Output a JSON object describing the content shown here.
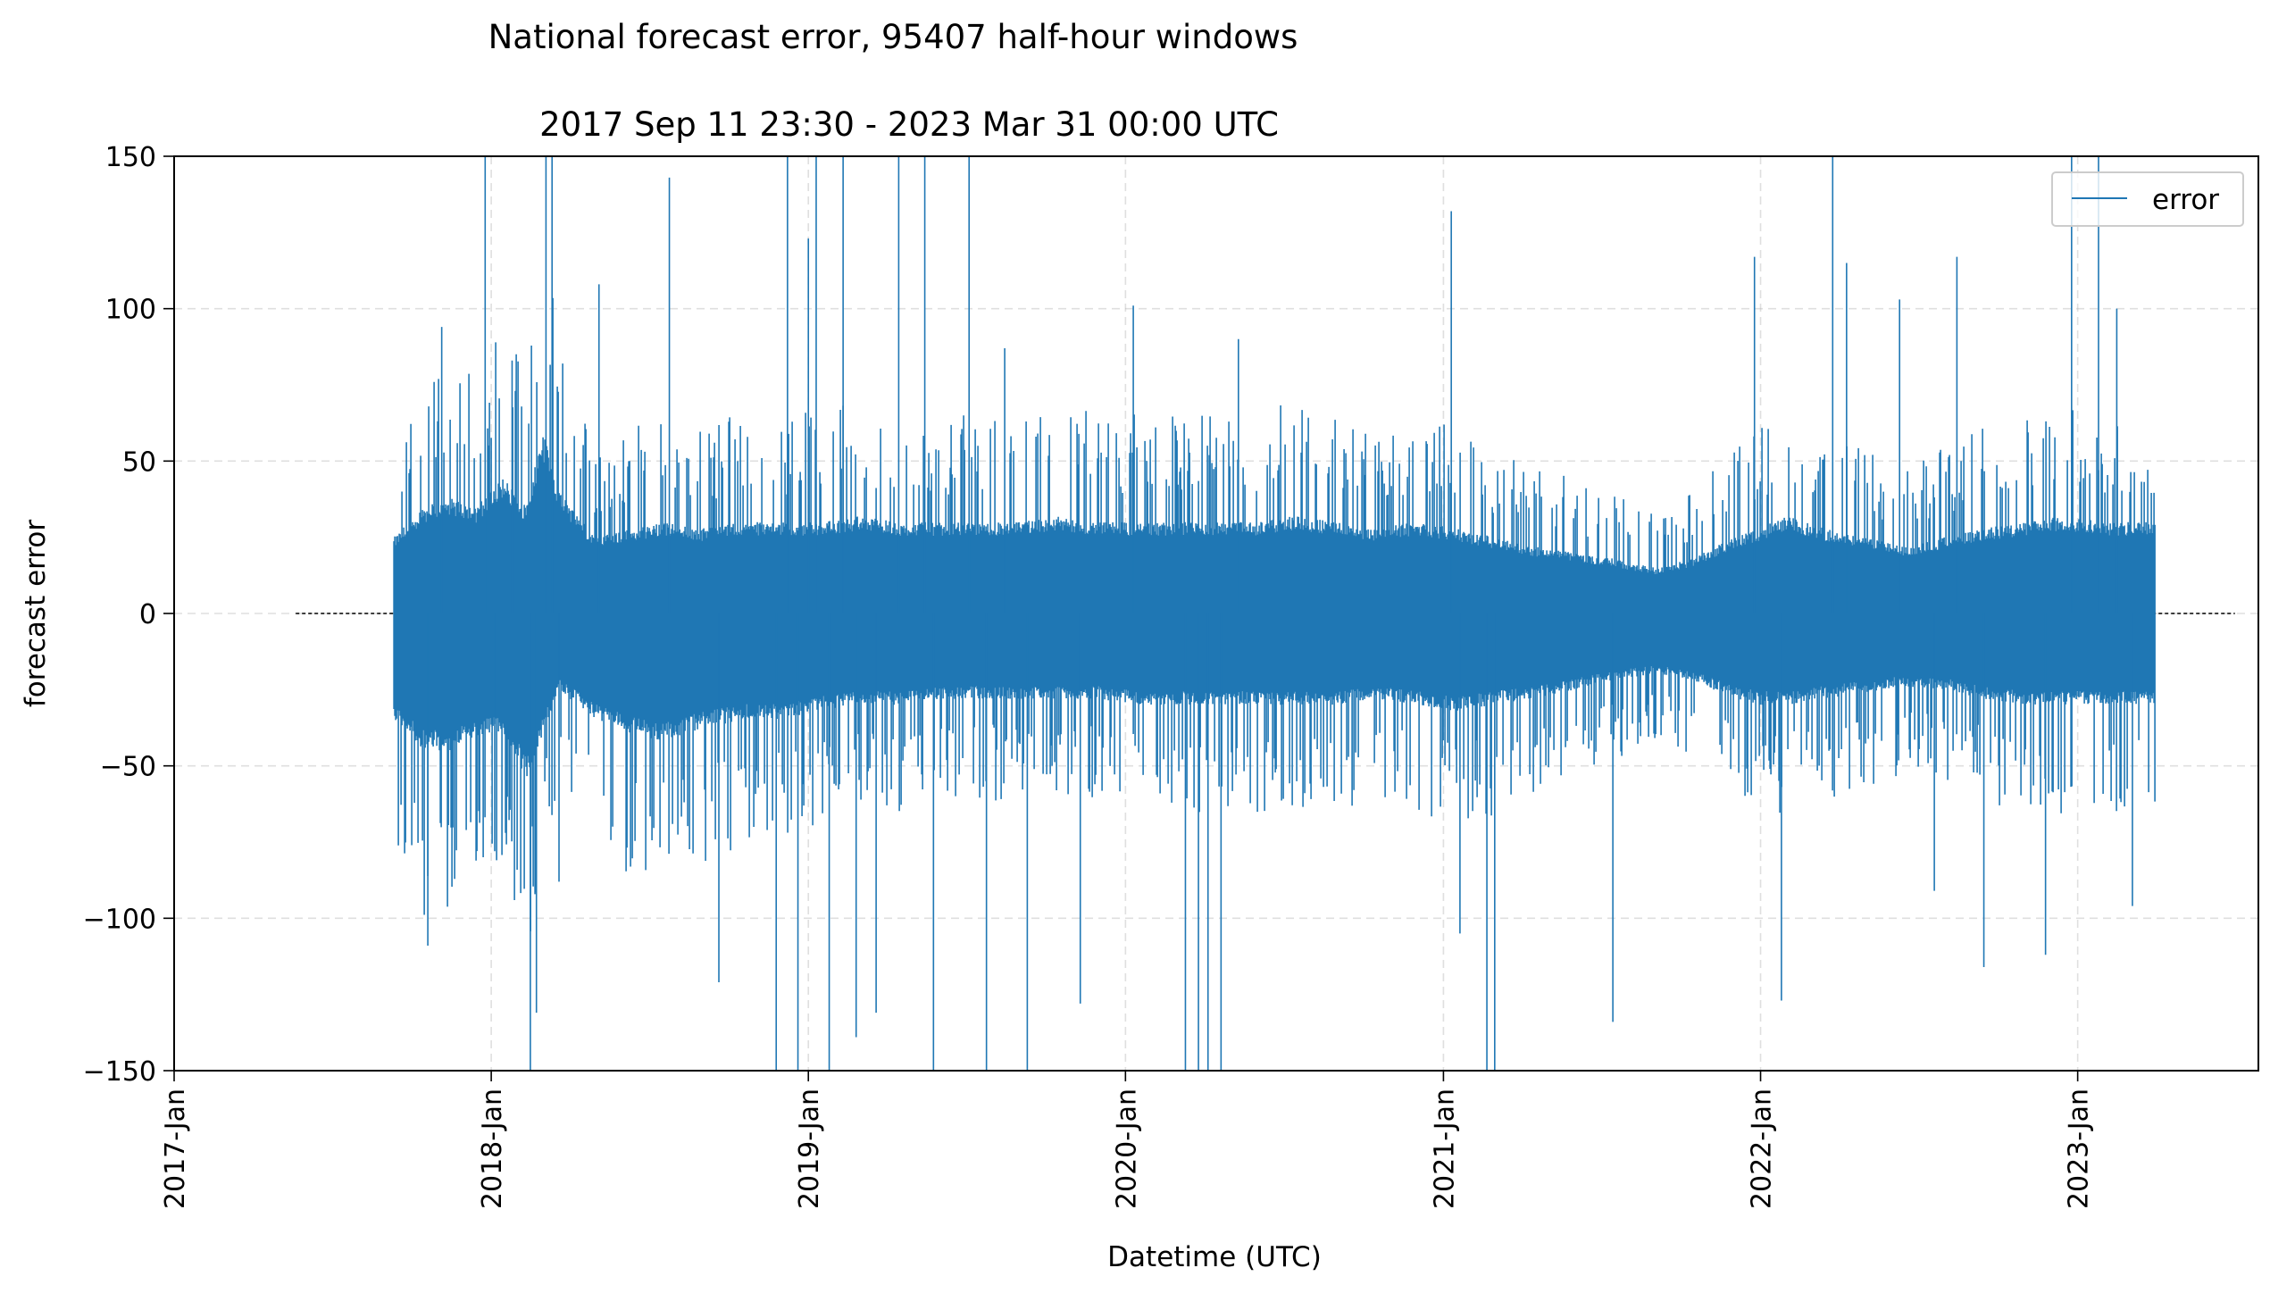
{
  "chart_data": {
    "type": "line",
    "suptitle": "National forecast error, 95407 half-hour windows",
    "title": "2017 Sep 11 23:30 - 2023 Mar 31 00:00 UTC",
    "xlabel": "Datetime (UTC)",
    "ylabel": "forecast error",
    "xlim": [
      "2017-01-01",
      "2023-07-28"
    ],
    "ylim": [
      -150,
      150
    ],
    "x_ticks": [
      {
        "date": "2017-01-01",
        "label": "2017-Jan"
      },
      {
        "date": "2018-01-01",
        "label": "2018-Jan"
      },
      {
        "date": "2019-01-01",
        "label": "2019-Jan"
      },
      {
        "date": "2020-01-01",
        "label": "2020-Jan"
      },
      {
        "date": "2021-01-01",
        "label": "2021-Jan"
      },
      {
        "date": "2022-01-01",
        "label": "2022-Jan"
      },
      {
        "date": "2023-01-01",
        "label": "2023-Jan"
      }
    ],
    "y_ticks": [
      {
        "value": 150,
        "label": "150"
      },
      {
        "value": 100,
        "label": "100"
      },
      {
        "value": 50,
        "label": "50"
      },
      {
        "value": 0,
        "label": "0"
      },
      {
        "value": -50,
        "label": "−50"
      },
      {
        "value": -100,
        "label": "−100"
      },
      {
        "value": -150,
        "label": "−150"
      }
    ],
    "grid": true,
    "legend_position": "top-right",
    "zero_line": {
      "y": 0,
      "x_start": "2017-05-21",
      "x_end": "2023-07-01",
      "style": "dashed",
      "color": "#000000"
    },
    "series": [
      {
        "name": "error",
        "color": "#1f77b4",
        "x_start": "2017-09-11",
        "x_end": "2023-03-31",
        "envelope_dates": [
          "2017-09-11",
          "2017-10-15",
          "2017-11-15",
          "2017-12-15",
          "2018-01-15",
          "2018-02-10",
          "2018-03-01",
          "2018-03-20",
          "2018-05-01",
          "2018-06-15",
          "2018-07-15",
          "2018-09-01",
          "2018-10-15",
          "2018-12-01",
          "2019-01-15",
          "2019-03-01",
          "2019-04-15",
          "2019-06-01",
          "2019-07-15",
          "2019-09-01",
          "2019-10-15",
          "2019-12-01",
          "2020-01-15",
          "2020-03-01",
          "2020-04-15",
          "2020-06-01",
          "2020-07-15",
          "2020-09-01",
          "2020-10-15",
          "2020-12-01",
          "2021-01-15",
          "2021-03-01",
          "2021-04-15",
          "2021-06-01",
          "2021-07-15",
          "2021-09-01",
          "2021-10-15",
          "2021-12-01",
          "2021-12-31",
          "2022-02-01",
          "2022-03-15",
          "2022-05-01",
          "2022-06-15",
          "2022-08-01",
          "2022-09-15",
          "2022-11-01",
          "2022-12-15",
          "2023-02-01",
          "2023-03-31"
        ],
        "envelope_upper": [
          25,
          35,
          38,
          35,
          45,
          35,
          60,
          40,
          25,
          28,
          30,
          28,
          30,
          30,
          30,
          32,
          30,
          30,
          30,
          30,
          32,
          30,
          30,
          30,
          30,
          30,
          32,
          30,
          28,
          30,
          28,
          25,
          22,
          20,
          18,
          15,
          18,
          25,
          28,
          32,
          28,
          25,
          22,
          25,
          28,
          30,
          32,
          30,
          30
        ],
        "envelope_lower": [
          -35,
          -45,
          -45,
          -40,
          -40,
          -55,
          -40,
          -25,
          -35,
          -40,
          -42,
          -38,
          -35,
          -35,
          -32,
          -30,
          -30,
          -28,
          -28,
          -28,
          -28,
          -28,
          -30,
          -30,
          -30,
          -30,
          -30,
          -30,
          -28,
          -30,
          -32,
          -30,
          -28,
          -25,
          -22,
          -20,
          -22,
          -28,
          -30,
          -30,
          -28,
          -26,
          -24,
          -25,
          -28,
          -30,
          -30,
          -30,
          -30
        ],
        "spikes": [
          {
            "date": "2017-10-20",
            "value": -109
          },
          {
            "date": "2017-11-05",
            "value": 94
          },
          {
            "date": "2017-12-25",
            "value": 150
          },
          {
            "date": "2018-01-05",
            "value": -78
          },
          {
            "date": "2018-01-25",
            "value": 83
          },
          {
            "date": "2018-02-15",
            "value": -150
          },
          {
            "date": "2018-02-22",
            "value": -131
          },
          {
            "date": "2018-03-05",
            "value": 150
          },
          {
            "date": "2018-03-12",
            "value": 150
          },
          {
            "date": "2018-03-20",
            "value": -88
          },
          {
            "date": "2018-05-05",
            "value": 108
          },
          {
            "date": "2018-07-25",
            "value": 143
          },
          {
            "date": "2018-09-20",
            "value": -121
          },
          {
            "date": "2018-11-25",
            "value": -150
          },
          {
            "date": "2018-12-08",
            "value": 150
          },
          {
            "date": "2018-12-20",
            "value": -150
          },
          {
            "date": "2019-01-01",
            "value": 123
          },
          {
            "date": "2019-01-10",
            "value": 150
          },
          {
            "date": "2019-01-25",
            "value": -150
          },
          {
            "date": "2019-02-10",
            "value": 150
          },
          {
            "date": "2019-02-25",
            "value": -139
          },
          {
            "date": "2019-03-20",
            "value": -131
          },
          {
            "date": "2019-04-15",
            "value": 150
          },
          {
            "date": "2019-05-15",
            "value": 150
          },
          {
            "date": "2019-05-25",
            "value": -150
          },
          {
            "date": "2019-07-05",
            "value": 150
          },
          {
            "date": "2019-07-25",
            "value": -150
          },
          {
            "date": "2019-08-15",
            "value": 87
          },
          {
            "date": "2019-09-10",
            "value": -150
          },
          {
            "date": "2019-11-10",
            "value": -128
          },
          {
            "date": "2020-01-10",
            "value": 101
          },
          {
            "date": "2020-03-10",
            "value": -150
          },
          {
            "date": "2020-03-25",
            "value": -150
          },
          {
            "date": "2020-04-05",
            "value": -150
          },
          {
            "date": "2020-04-20",
            "value": -150
          },
          {
            "date": "2020-05-10",
            "value": 90
          },
          {
            "date": "2021-01-10",
            "value": 132
          },
          {
            "date": "2021-01-20",
            "value": -105
          },
          {
            "date": "2021-02-20",
            "value": -150
          },
          {
            "date": "2021-03-01",
            "value": -150
          },
          {
            "date": "2021-07-15",
            "value": -134
          },
          {
            "date": "2021-12-25",
            "value": 117
          },
          {
            "date": "2022-01-25",
            "value": -127
          },
          {
            "date": "2022-03-25",
            "value": 150
          },
          {
            "date": "2022-04-10",
            "value": 115
          },
          {
            "date": "2022-06-10",
            "value": 103
          },
          {
            "date": "2022-07-20",
            "value": -91
          },
          {
            "date": "2022-08-15",
            "value": 117
          },
          {
            "date": "2022-09-15",
            "value": -116
          },
          {
            "date": "2022-11-25",
            "value": -112
          },
          {
            "date": "2022-12-25",
            "value": 150
          },
          {
            "date": "2023-01-25",
            "value": 150
          },
          {
            "date": "2023-02-15",
            "value": 100
          },
          {
            "date": "2023-03-05",
            "value": -96
          }
        ]
      }
    ]
  }
}
